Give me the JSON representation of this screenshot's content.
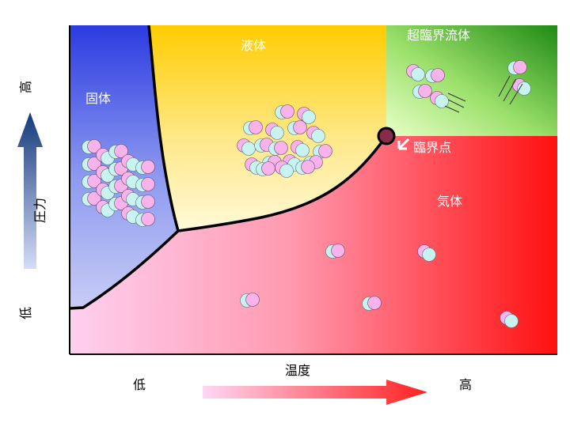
{
  "regions": {
    "solid": "固体",
    "liquid": "液体",
    "supercritical": "超臨界流体",
    "gas": "気体"
  },
  "critical_point_label": "臨界点",
  "axes": {
    "x_label": "温度",
    "x_low": "低",
    "x_high": "高",
    "y_label": "圧力",
    "y_low": "低",
    "y_high": "高"
  },
  "colors": {
    "solid": "#3a4fe0",
    "liquid": "#ffcc00",
    "supercritical": "#2e8b1a",
    "gas": "#ff2020",
    "molecule_pink": "#f7b3ea",
    "molecule_cyan": "#c8f3f0",
    "critical_point": "#8a2a4a"
  }
}
